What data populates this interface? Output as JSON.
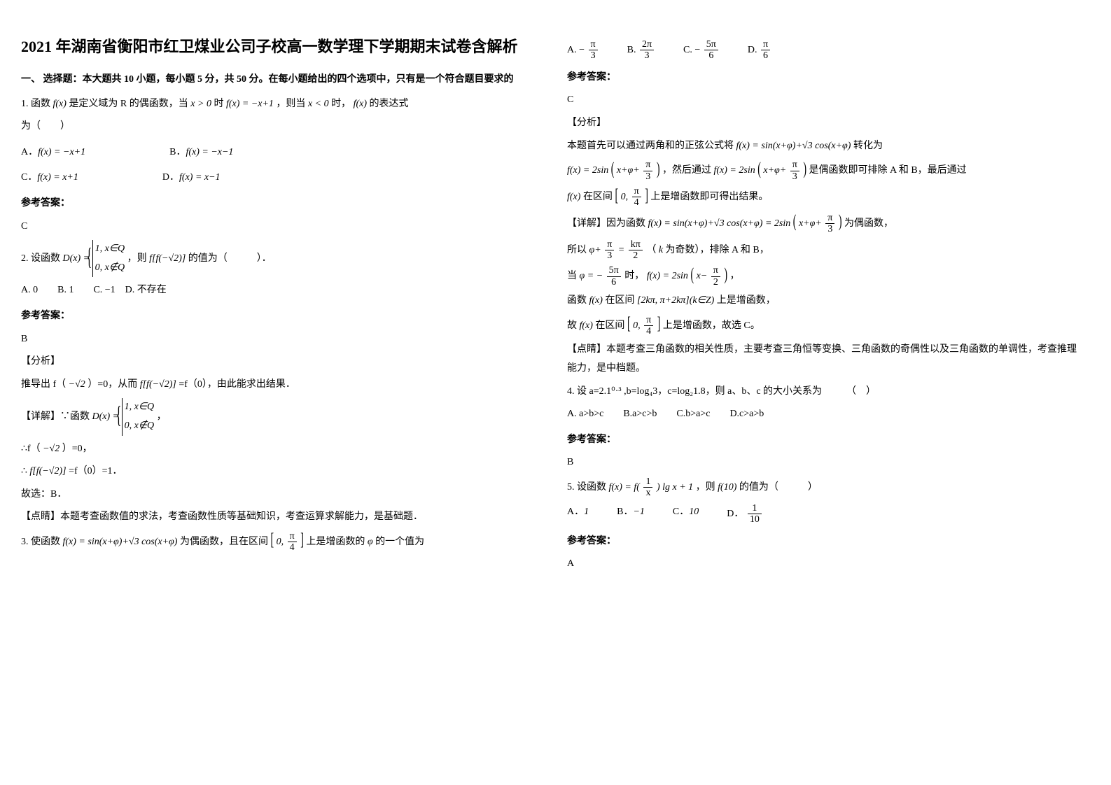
{
  "title": "2021 年湖南省衡阳市红卫煤业公司子校高一数学理下学期期末试卷含解析",
  "section1_heading": "一、 选择题：本大题共 10 小题，每小题 5 分，共 50 分。在每小题给出的四个选项中，只有是一个符合题目要求的",
  "q1": {
    "stem_a": "1. 函数",
    "stem_b": "是定义域为 R 的偶函数，当",
    "stem_c": "时",
    "stem_d": "，则当",
    "stem_e": "时，",
    "stem_f": "的表达式",
    "stem_g": "为（　　）",
    "fx": "f(x)",
    "xgt0": "x > 0",
    "fxeq": "f(x) = −x+1",
    "xlt0": "x < 0",
    "optA_l": "A．",
    "optA": "f(x) = −x+1",
    "optB_l": "B．",
    "optB": "f(x) = −x−1",
    "optC_l": "C．",
    "optC": "f(x) = x+1",
    "optD_l": "D．",
    "optD": "f(x) = x−1",
    "ans_label": "参考答案：",
    "ans": "C"
  },
  "q2": {
    "stem_a": "2. 设函数",
    "dx": "D(x) =",
    "case1": "1, x∈Q",
    "case2": "0, x∉Q",
    "stem_b": "，则",
    "ff": "f[f(−√2)]",
    "stem_c": "的值为（　　　）．",
    "opts": "A. 0　　B. 1　　C. −1　D. 不存在",
    "ans_label": "参考答案：",
    "ans": "B",
    "fenxi": "【分析】",
    "detail1_a": "推导出 f（",
    "neg_sqrt2_1": "−√2",
    "detail1_b": "）=0，从而",
    "ff2": "f[f(−√2)]",
    "detail1_c": "=f（0），由此能求出结果．",
    "detail2_a": "【详解】∵函数",
    "dx2": "D(x) =",
    "case1b": "1, x∈Q",
    "case2b": "0, x∉Q",
    "comma": "，",
    "detail3_a": "∴f（",
    "neg_sqrt2_2": "−√2",
    "detail3_b": "）=0，",
    "detail4_a": "∴",
    "ff3": "f[f(−√2)]",
    "detail4_b": "=f（0）=1．",
    "detail5": "故选：B．",
    "comment": "【点睛】本题考查函数值的求法，考查函数性质等基础知识，考查运算求解能力，是基础题．"
  },
  "q3": {
    "stem_a": "3. 使函数",
    "fx": "f(x) = sin(x+φ)+√3 cos(x+φ)",
    "stem_b": "为偶函数，且在区间",
    "int_l": "[",
    "int_0": "0,",
    "int_pi4_num": "π",
    "int_pi4_den": "4",
    "int_r": "]",
    "stem_c": "上是增函数的",
    "phi": "φ",
    "stem_d": "的一个值为",
    "optA_l": "A.",
    "optA_num": "π",
    "optA_den": "3",
    "optA_sign": "−",
    "optB_l": "B.",
    "optB_num": "2π",
    "optB_den": "3",
    "optC_l": "C.",
    "optC_num": "5π",
    "optC_den": "6",
    "optC_sign": "−",
    "optD_l": "D.",
    "optD_num": "π",
    "optD_den": "6",
    "ans_label": "参考答案：",
    "ans": "C",
    "fenxi": "【分析】",
    "d1_a": "本题首先可以通过两角和的正弦公式将",
    "fx2": "f(x) = sin(x+φ)+√3 cos(x+φ)",
    "d1_b": "转化为",
    "fx3": "f(x) = 2sin",
    "arg3_a": "x+φ+",
    "arg3_num": "π",
    "arg3_den": "3",
    "d2_a": "，然后通过",
    "fx3b": "f(x) = 2sin",
    "d2_b": "是偶函数即可排除 A 和 B，最后通过",
    "fx4": "f(x)",
    "d3_a": "在区间",
    "d3_b": "上是增函数即可得出结果。",
    "d4_a": "【详解】因为函数",
    "fx5": "f(x) = sin(x+φ)+√3 cos(x+φ) = 2sin",
    "d4_b": "为偶函数，",
    "d5_a": "所以",
    "phi_eq_lhs_a": "φ+",
    "phi_eq_num1": "π",
    "phi_eq_den1": "3",
    "eq": "=",
    "phi_eq_num2": "kπ",
    "phi_eq_den2": "2",
    "d5_b": "（",
    "k": "k",
    "d5_c": "为奇数），排除 A 和 B，",
    "d6_a": "当",
    "phi_eq2_a": "φ = −",
    "phi_eq2_num": "5π",
    "phi_eq2_den": "6",
    "d6_b": "时，",
    "fx6": "f(x) = 2sin",
    "arg6_a": "x−",
    "arg6_num": "π",
    "arg6_den": "2",
    "d6_c": "，",
    "d7_a": "函数",
    "fx7": "f(x)",
    "d7_b": "在区间",
    "int2": "[2kπ, π+2kπ](k∈Z)",
    "d7_c": "上是增函数，",
    "d8_a": "故",
    "fx8": "f(x)",
    "d8_b": "在区间",
    "d8_c": "上是增函数，故选 C。",
    "comment": "【点睛】本题考查三角函数的相关性质，主要考查三角恒等变换、三角函数的奇偶性以及三角函数的单调性，考查推理能力，是中档题。"
  },
  "q4": {
    "stem": "4. 设 a=2.1⁰·³ ,b=log₄3，c=log₂1.8，则 a、b、c 的大小关系为　　　（　）",
    "opts": "A. a>b>c　　B.a>c>b　　C.b>a>c　　D.c>a>b",
    "ans_label": "参考答案：",
    "ans": "B"
  },
  "q5": {
    "stem_a": "5. 设函数",
    "fx": "f(x) = f(",
    "frac1x_num": "1",
    "frac1x_den": "x",
    "fx_b": ") lg x + 1",
    "stem_b": "，则",
    "f10": "f(10)",
    "stem_c": "的值为（　　　）",
    "optA_l": "A．",
    "optA": "1",
    "optB_l": "B．",
    "optB": "−1",
    "optC_l": "C．",
    "optC": "10",
    "optD_l": "D．",
    "optD_num": "1",
    "optD_den": "10",
    "ans_label": "参考答案：",
    "ans": "A"
  }
}
